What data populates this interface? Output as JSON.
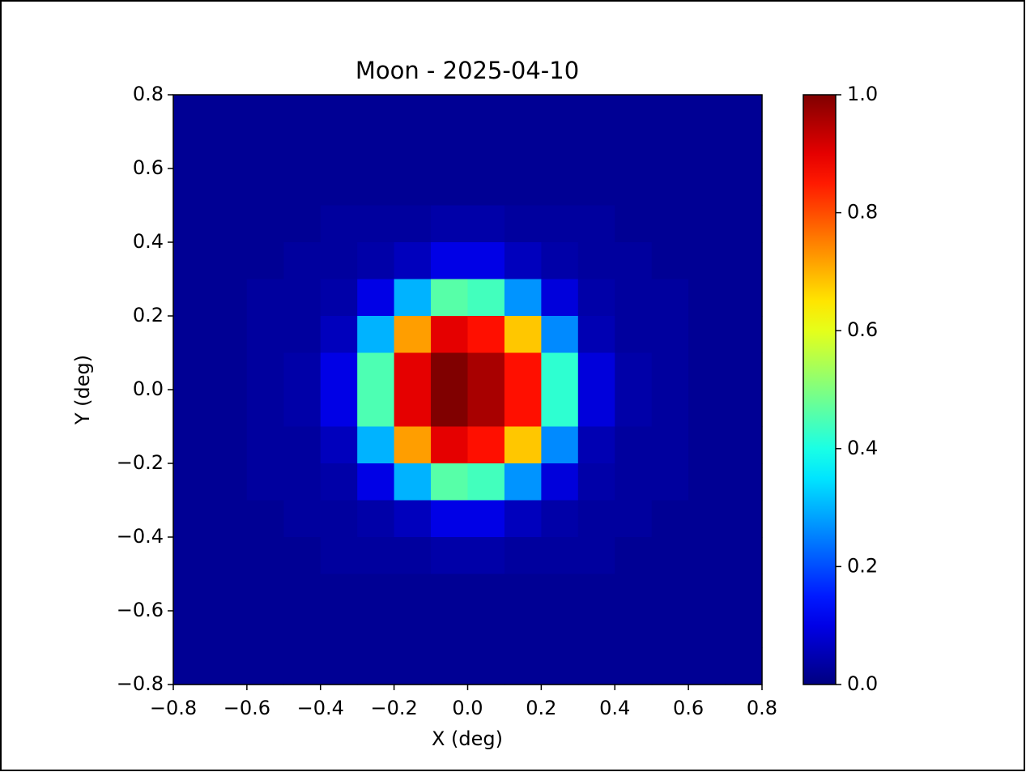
{
  "chart_data": {
    "type": "heatmap",
    "title": "Moon - 2025-04-10",
    "xlabel": "X (deg)",
    "ylabel": "Y (deg)",
    "colormap": "jet",
    "origin": "upper",
    "xlim": [
      -0.8,
      0.8
    ],
    "ylim": [
      -0.8,
      0.8
    ],
    "xticks": [
      {
        "value": -0.8,
        "label": "−0.8"
      },
      {
        "value": -0.6,
        "label": "−0.6"
      },
      {
        "value": -0.4,
        "label": "−0.4"
      },
      {
        "value": -0.2,
        "label": "−0.2"
      },
      {
        "value": 0,
        "label": "0.0"
      },
      0.2,
      0.4,
      0.6,
      0.8
    ],
    "yticks": [
      {
        "value": -0.8,
        "label": "−0.8"
      },
      {
        "value": -0.6,
        "label": "−0.6"
      },
      {
        "value": -0.4,
        "label": "−0.4"
      },
      {
        "value": -0.2,
        "label": "−0.2"
      },
      {
        "value": 0,
        "label": "0.0"
      },
      0.2,
      0.4,
      0.6,
      0.8
    ],
    "clim": [
      0,
      1
    ],
    "cticks": [
      {
        "value": 0,
        "label": "0.0"
      },
      0.2,
      0.4,
      0.6,
      0.8,
      {
        "value": 1,
        "label": "1.0"
      }
    ],
    "values": [
      [
        0.02,
        0.02,
        0.02,
        0.02,
        0.02,
        0.02,
        0.02,
        0.02,
        0.02,
        0.02,
        0.02,
        0.02,
        0.02,
        0.02,
        0.02,
        0.02
      ],
      [
        0.02,
        0.02,
        0.02,
        0.02,
        0.02,
        0.02,
        0.02,
        0.02,
        0.02,
        0.02,
        0.02,
        0.02,
        0.02,
        0.02,
        0.02,
        0.02
      ],
      [
        0.02,
        0.02,
        0.02,
        0.02,
        0.02,
        0.02,
        0.02,
        0.02,
        0.02,
        0.02,
        0.02,
        0.02,
        0.02,
        0.02,
        0.02,
        0.02
      ],
      [
        0.02,
        0.02,
        0.02,
        0.02,
        0.03,
        0.03,
        0.03,
        0.04,
        0.04,
        0.03,
        0.03,
        0.03,
        0.02,
        0.02,
        0.02,
        0.02
      ],
      [
        0.02,
        0.02,
        0.02,
        0.03,
        0.03,
        0.04,
        0.06,
        0.1,
        0.1,
        0.06,
        0.04,
        0.03,
        0.03,
        0.02,
        0.02,
        0.02
      ],
      [
        0.02,
        0.02,
        0.03,
        0.03,
        0.04,
        0.1,
        0.3,
        0.46,
        0.44,
        0.27,
        0.09,
        0.04,
        0.03,
        0.03,
        0.02,
        0.02
      ],
      [
        0.02,
        0.02,
        0.03,
        0.03,
        0.06,
        0.3,
        0.72,
        0.9,
        0.86,
        0.68,
        0.26,
        0.05,
        0.03,
        0.03,
        0.02,
        0.02
      ],
      [
        0.02,
        0.02,
        0.03,
        0.04,
        0.1,
        0.45,
        0.9,
        1.0,
        0.96,
        0.86,
        0.42,
        0.09,
        0.04,
        0.03,
        0.02,
        0.02
      ],
      [
        0.02,
        0.02,
        0.03,
        0.04,
        0.1,
        0.45,
        0.9,
        1.0,
        0.96,
        0.86,
        0.42,
        0.09,
        0.04,
        0.03,
        0.02,
        0.02
      ],
      [
        0.02,
        0.02,
        0.03,
        0.03,
        0.06,
        0.3,
        0.72,
        0.9,
        0.86,
        0.68,
        0.26,
        0.05,
        0.03,
        0.03,
        0.02,
        0.02
      ],
      [
        0.02,
        0.02,
        0.03,
        0.03,
        0.04,
        0.1,
        0.3,
        0.46,
        0.44,
        0.27,
        0.09,
        0.04,
        0.03,
        0.03,
        0.02,
        0.02
      ],
      [
        0.02,
        0.02,
        0.02,
        0.03,
        0.03,
        0.04,
        0.06,
        0.1,
        0.1,
        0.06,
        0.04,
        0.03,
        0.03,
        0.02,
        0.02,
        0.02
      ],
      [
        0.02,
        0.02,
        0.02,
        0.02,
        0.03,
        0.03,
        0.03,
        0.04,
        0.04,
        0.03,
        0.03,
        0.03,
        0.02,
        0.02,
        0.02,
        0.02
      ],
      [
        0.02,
        0.02,
        0.02,
        0.02,
        0.02,
        0.02,
        0.02,
        0.02,
        0.02,
        0.02,
        0.02,
        0.02,
        0.02,
        0.02,
        0.02,
        0.02
      ],
      [
        0.02,
        0.02,
        0.02,
        0.02,
        0.02,
        0.02,
        0.02,
        0.02,
        0.02,
        0.02,
        0.02,
        0.02,
        0.02,
        0.02,
        0.02,
        0.02
      ],
      [
        0.02,
        0.02,
        0.02,
        0.02,
        0.02,
        0.02,
        0.02,
        0.02,
        0.02,
        0.02,
        0.02,
        0.02,
        0.02,
        0.02,
        0.02,
        0.02
      ]
    ]
  }
}
